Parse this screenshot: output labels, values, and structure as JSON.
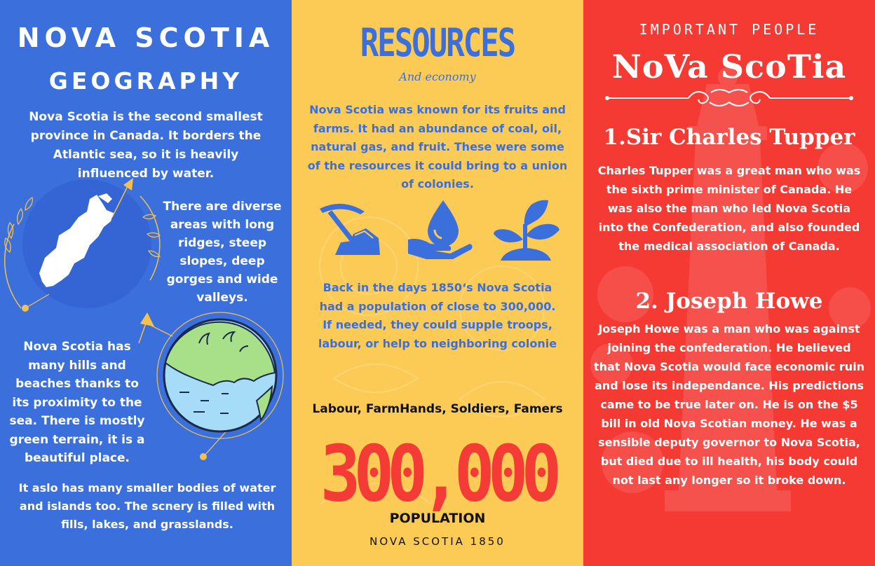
{
  "geography": {
    "title_line1": "NOVA SCOTIA",
    "title_line2": "GEOGRAPHY",
    "intro": "Nova Scotia is the second smallest province in Canada. It borders the Atlantic sea, so it is heavily influenced by water.",
    "diverse": "There are diverse areas with long ridges, steep slopes, deep gorges and wide valleys.",
    "hills": "Nova Scotia has many hills and beaches thanks to its proximity to the sea. There is mostly green terrain, it is a beautiful place.",
    "water": "It aslo has many smaller bodies of water and islands too. The scnery is filled with fills, lakes, and grasslands."
  },
  "resources": {
    "title": "RESOURCES",
    "subtitle": "And economy",
    "known_for": "Nova Scotia was known for its fruits and farms.  It had an abundance of coal, oil, natural gas, and fruit. These were some of the resources it could bring to a union of colonies.",
    "icons": [
      "pickaxe-rocks-icon",
      "water-drop-hand-icon",
      "plant-sprout-icon"
    ],
    "population_text": "Back in the days 1850‘s Nova Scotia had a population of close to 300,000. If needed, they could supple troops, labour, or help to neighboring colonie",
    "labour": "Labour, FarmHands, Soldiers, Famers",
    "big_number": "300,000",
    "population_label": "POPULATION",
    "population_caption": "NOVA SCOTIA 1850"
  },
  "people": {
    "heading": "IMPORTANT PEOPLE",
    "title": "NoVa ScoTia",
    "person1_name": "1.Sir Charles Tupper",
    "person1_text": "Charles Tupper was a great man who was the sixth prime minister of Canada. He was also the man who led Nova Scotia into the  Confederation, and also founded the medical association of Canada.",
    "person2_name": "2. Joseph Howe",
    "person2_text": "Joseph Howe was a man who was against joining the confederation. He believed that Nova Scotia would face economic ruin and lose its independance. His predictions came to be true later on. He is on the $5 bill in old Nova Scotian money. He was a sensible deputy governor to Nova Scotia, but died due to ill health, his body could not last any longer so it broke down."
  },
  "colors": {
    "blue": "#3a6fdc",
    "yellow": "#fccb55",
    "red": "#f53a34",
    "accent_gold": "#f2c14e",
    "land_green": "#a8e08a",
    "water_blue": "#a6dcf7"
  }
}
